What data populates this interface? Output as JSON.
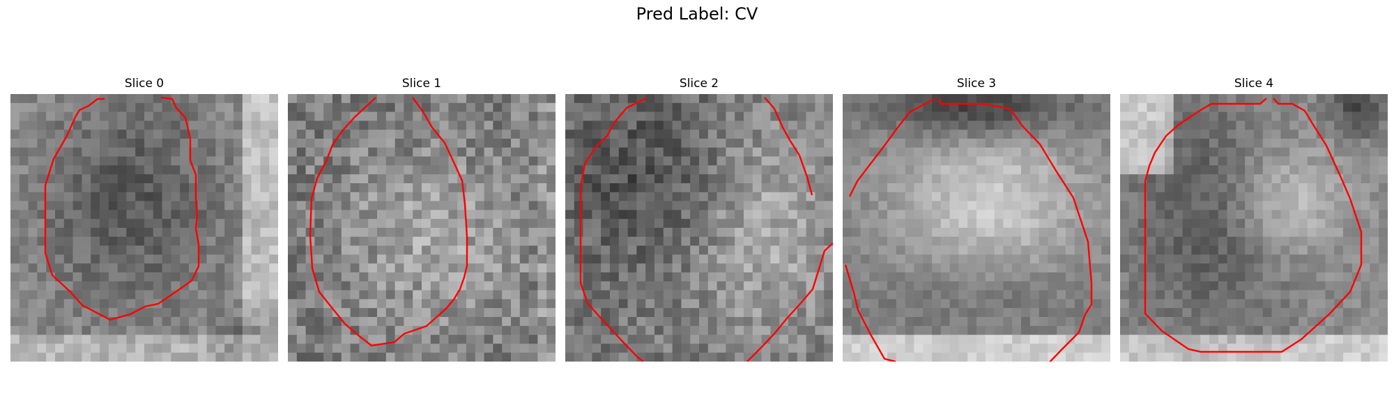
{
  "figure": {
    "title": "Pred Label: CV",
    "contour_color": "#ff0000",
    "colormap": "gray"
  },
  "panels": [
    {
      "title": "Slice 0",
      "pattern": "dark-blob-center, light edges right and bottom-left, dark corner bottom-right"
    },
    {
      "title": "Slice 1",
      "pattern": "noisy mid-gray, lighter center"
    },
    {
      "title": "Slice 2",
      "pattern": "dark top-left, lighter right-center"
    },
    {
      "title": "Slice 3",
      "pattern": "dark top band, light center, mid-gray bottom, light bottom edge"
    },
    {
      "title": "Slice 4",
      "pattern": "light top-left, dark ring, light right-center"
    }
  ]
}
